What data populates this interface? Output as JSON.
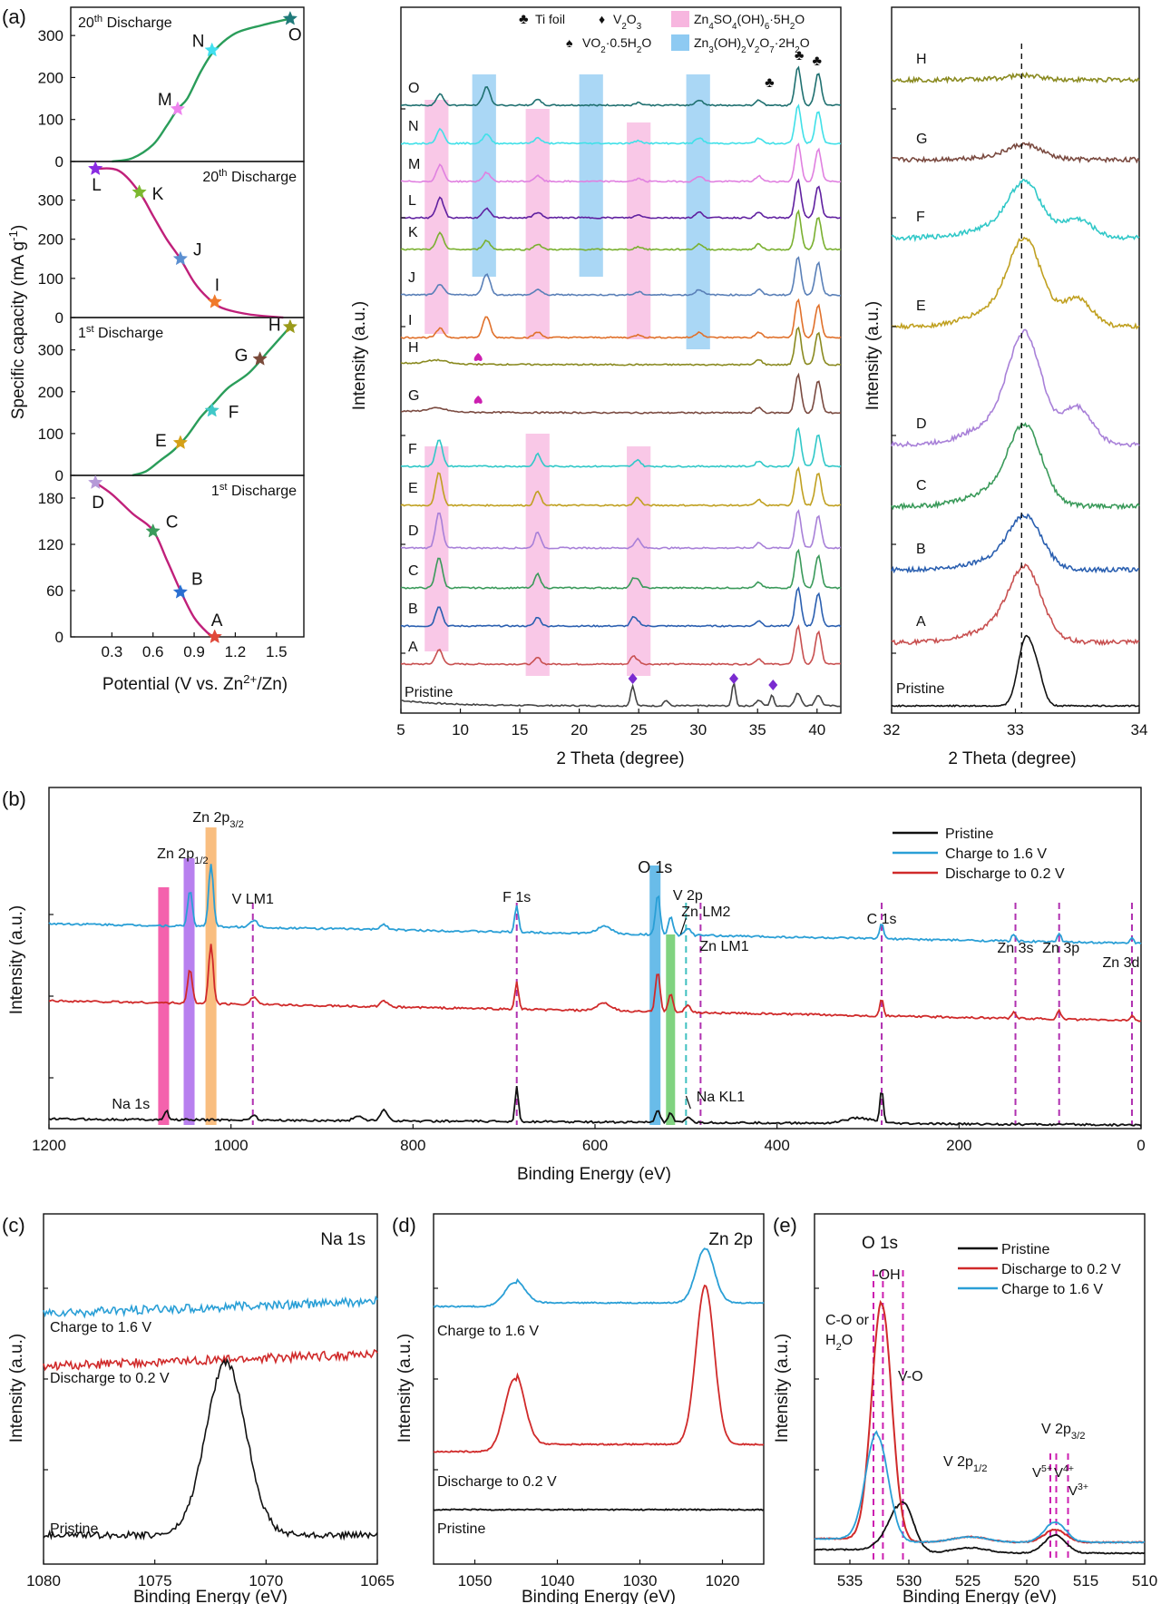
{
  "chart_data": [
    {
      "id": "a-capacity",
      "type": "line",
      "panel_label": "(a)",
      "xlabel_main": "Potential (V vs. Zn",
      "xlabel_sup": "2+",
      "xlabel_tail": "/Zn)",
      "ylabel_main": "Specific capacity (mA g",
      "ylabel_sup": "-1",
      "ylabel_tail": ")",
      "xlim": [
        0.0,
        1.7
      ],
      "xticks": [
        "0.3",
        "0.6",
        "0.9",
        "1.2",
        "1.5"
      ],
      "subplots": [
        {
          "label_main": "20",
          "label_sup": "th",
          "label_tail": " Discharge",
          "label_pos": "top-left",
          "color": "#2a9d5a",
          "ylim": [
            0,
            350
          ],
          "yticks": [
            "0",
            "100",
            "200",
            "300"
          ],
          "curve": [
            [
              0.3,
              0
            ],
            [
              0.45,
              8
            ],
            [
              0.6,
              40
            ],
            [
              0.7,
              85
            ],
            [
              0.78,
              125
            ],
            [
              0.85,
              150
            ],
            [
              0.95,
              215
            ],
            [
              1.05,
              265
            ],
            [
              1.2,
              305
            ],
            [
              1.4,
              325
            ],
            [
              1.6,
              340
            ]
          ],
          "points": [
            {
              "name": "M",
              "x": 0.78,
              "y": 125,
              "color": "#ee82ee"
            },
            {
              "name": "N",
              "x": 1.03,
              "y": 265,
              "color": "#40e0f0"
            },
            {
              "name": "O",
              "x": 1.6,
              "y": 340,
              "color": "#1f7a7a"
            }
          ]
        },
        {
          "label_main": "20",
          "label_sup": "th",
          "label_tail": " Discharge",
          "label_pos": "top-right",
          "color": "#c0207a",
          "ylim": [
            0,
            380
          ],
          "yticks": [
            "0",
            "100",
            "200",
            "300"
          ],
          "curve": [
            [
              0.18,
              380
            ],
            [
              0.35,
              375
            ],
            [
              0.5,
              320
            ],
            [
              0.6,
              260
            ],
            [
              0.7,
              200
            ],
            [
              0.8,
              150
            ],
            [
              0.9,
              90
            ],
            [
              1.0,
              50
            ],
            [
              1.1,
              25
            ],
            [
              1.3,
              8
            ],
            [
              1.55,
              0
            ]
          ],
          "points": [
            {
              "name": "L",
              "x": 0.18,
              "y": 380,
              "color": "#8a2be2"
            },
            {
              "name": "K",
              "x": 0.5,
              "y": 320,
              "color": "#7cb82f"
            },
            {
              "name": "J",
              "x": 0.8,
              "y": 150,
              "color": "#5b8fd1"
            },
            {
              "name": "I",
              "x": 1.05,
              "y": 40,
              "color": "#f07a2a"
            }
          ]
        },
        {
          "label_main": "1",
          "label_sup": "st",
          "label_tail": " Discharge",
          "label_pos": "top-left",
          "color": "#2a9d5a",
          "ylim": [
            0,
            360
          ],
          "yticks": [
            "0",
            "100",
            "200",
            "300"
          ],
          "curve": [
            [
              0.45,
              0
            ],
            [
              0.55,
              10
            ],
            [
              0.65,
              35
            ],
            [
              0.75,
              60
            ],
            [
              0.85,
              95
            ],
            [
              0.95,
              140
            ],
            [
              1.05,
              175
            ],
            [
              1.15,
              210
            ],
            [
              1.3,
              245
            ],
            [
              1.45,
              300
            ],
            [
              1.6,
              355
            ]
          ],
          "points": [
            {
              "name": "E",
              "x": 0.8,
              "y": 78,
              "color": "#d4a017"
            },
            {
              "name": "F",
              "x": 1.03,
              "y": 155,
              "color": "#40c8c8"
            },
            {
              "name": "G",
              "x": 1.38,
              "y": 278,
              "color": "#7a4a3a"
            },
            {
              "name": "H",
              "x": 1.6,
              "y": 355,
              "color": "#9a9a1a"
            }
          ]
        },
        {
          "label_main": "1",
          "label_sup": "st",
          "label_tail": " Discharge",
          "label_pos": "top-right",
          "color": "#c0207a",
          "ylim": [
            0,
            200
          ],
          "yticks": [
            "0",
            "60",
            "120",
            "180"
          ],
          "curve": [
            [
              0.18,
              200
            ],
            [
              0.3,
              185
            ],
            [
              0.45,
              160
            ],
            [
              0.6,
              138
            ],
            [
              0.7,
              100
            ],
            [
              0.8,
              60
            ],
            [
              0.9,
              25
            ],
            [
              1.0,
              5
            ],
            [
              1.05,
              0
            ]
          ],
          "points": [
            {
              "name": "D",
              "x": 0.18,
              "y": 200,
              "color": "#b59ad8"
            },
            {
              "name": "C",
              "x": 0.6,
              "y": 137,
              "color": "#3a9a5a"
            },
            {
              "name": "B",
              "x": 0.8,
              "y": 58,
              "color": "#2a6fd1"
            },
            {
              "name": "A",
              "x": 1.05,
              "y": 0,
              "color": "#e0483a"
            }
          ]
        }
      ]
    },
    {
      "id": "a-xrd",
      "type": "line",
      "xlabel": "2 Theta (degree)",
      "ylabel": "Intensity (a.u.)",
      "xlim": [
        5,
        42
      ],
      "xticks": [
        "5",
        "10",
        "15",
        "20",
        "25",
        "30",
        "35",
        "40"
      ],
      "legend": [
        {
          "symbol": "♣",
          "label": "Ti foil",
          "color": "#111111"
        },
        {
          "symbol": "♦",
          "label_main": "V",
          "label_sub": "2",
          "label_tail": "O",
          "label_sub2": "3",
          "color": "#7a2bd0"
        },
        {
          "symbol": "■",
          "label": "Zn4SO4(OH)6·5H2O",
          "color": "#f7b6df"
        },
        {
          "symbol": "♠",
          "label": "VO2·0.5H2O",
          "color": "#cc1fb0"
        },
        {
          "symbol": "■",
          "label": "Zn3(OH)2V2O7·2H2O",
          "color": "#8ecaf2"
        }
      ],
      "band_pink": [
        [
          7,
          9
        ],
        [
          15.5,
          17.5
        ],
        [
          24,
          26
        ]
      ],
      "band_blue": [
        [
          11,
          13
        ],
        [
          20,
          22
        ],
        [
          29,
          31
        ]
      ],
      "series": [
        {
          "name": "Pristine",
          "color": "#444444"
        },
        {
          "name": "A",
          "color": "#c85050"
        },
        {
          "name": "B",
          "color": "#2a5fb0"
        },
        {
          "name": "C",
          "color": "#3a9a5a"
        },
        {
          "name": "D",
          "color": "#a880d8"
        },
        {
          "name": "E",
          "color": "#c0a020"
        },
        {
          "name": "F",
          "color": "#30c8c8"
        },
        {
          "name": "G",
          "color": "#7a4a40"
        },
        {
          "name": "H",
          "color": "#8a8a20"
        },
        {
          "name": "I",
          "color": "#e0702a"
        },
        {
          "name": "J",
          "color": "#5a80b8"
        },
        {
          "name": "K",
          "color": "#7ab030"
        },
        {
          "name": "L",
          "color": "#6020a0"
        },
        {
          "name": "M",
          "color": "#e080e0"
        },
        {
          "name": "N",
          "color": "#40e0e8"
        },
        {
          "name": "O",
          "color": "#1f7070"
        }
      ],
      "markers_diamond": [
        24.5,
        33,
        36.3
      ],
      "markers_spade": [
        11.5,
        11.5
      ],
      "markers_club": [
        36,
        38.5,
        40
      ]
    },
    {
      "id": "a-zoom",
      "type": "line",
      "xlabel": "2 Theta (degree)",
      "ylabel": "Intensity (a.u.)",
      "xlim": [
        32,
        34
      ],
      "xticks": [
        "32",
        "33",
        "34"
      ],
      "ref_line": 33.05,
      "series": [
        "Pristine",
        "A",
        "B",
        "C",
        "D",
        "E",
        "F",
        "G",
        "H"
      ]
    },
    {
      "id": "b-survey",
      "type": "line",
      "panel_label": "(b)",
      "xlabel": "Binding Energy (eV)",
      "ylabel": "Intensity (a.u.)",
      "xlim": [
        1200,
        0
      ],
      "xticks": [
        "1200",
        "1000",
        "800",
        "600",
        "400",
        "200",
        "0"
      ],
      "legend": [
        {
          "label": "Pristine",
          "color": "#111111"
        },
        {
          "label": "Charge to 1.6 V",
          "color": "#2a9fd6"
        },
        {
          "label": "Discharge to 0.2 V",
          "color": "#d02a2a"
        }
      ],
      "bands": [
        {
          "x": [
            1080,
            1068
          ],
          "color": "#f0208a"
        },
        {
          "x": [
            1052,
            1040
          ],
          "color": "#9a4ae8"
        },
        {
          "x": [
            1028,
            1016
          ],
          "color": "#f6a24a"
        },
        {
          "x": [
            540,
            528
          ],
          "color": "#2aa0e0"
        },
        {
          "x": [
            522,
            512
          ],
          "color": "#4ac04a"
        }
      ],
      "peak_lines": [
        {
          "x": 976,
          "color": "#b030b0"
        },
        {
          "x": 686,
          "color": "#b030b0"
        },
        {
          "x": 500,
          "color": "#40c0c0"
        },
        {
          "x": 484,
          "color": "#b030b0"
        },
        {
          "x": 285,
          "color": "#b030b0"
        },
        {
          "x": 138,
          "color": "#b030b0"
        },
        {
          "x": 90,
          "color": "#b030b0"
        },
        {
          "x": 10,
          "color": "#b030b0"
        }
      ],
      "annotations": [
        {
          "text": "Na 1s",
          "x": 1110,
          "row": "pristine"
        },
        {
          "text": "Zn 2p",
          "sub": "1/2",
          "x": 1075,
          "row": "top1"
        },
        {
          "text": "Zn 2p",
          "sub": "3/2",
          "x": 1028,
          "row": "top0"
        },
        {
          "text": "V LM1",
          "x": 976,
          "row": "top2"
        },
        {
          "text": "F 1s",
          "x": 686,
          "row": "top2"
        },
        {
          "text": "O 1s",
          "x": 540,
          "row": "top1"
        },
        {
          "text": "V 2p",
          "x": 518,
          "row": "top2"
        },
        {
          "text": "Zn LM2",
          "x": 498,
          "row": "top3"
        },
        {
          "text": "Zn LM1",
          "x": 465,
          "row": "top4"
        },
        {
          "text": "Na KL1",
          "x": 470,
          "row": "pristine"
        },
        {
          "text": "C 1s",
          "x": 285,
          "row": "top4"
        },
        {
          "text": "Zn 3s",
          "x": 138,
          "row": "top5"
        },
        {
          "text": "Zn 3p",
          "x": 90,
          "row": "top5"
        },
        {
          "text": "Zn 3d",
          "x": 25,
          "row": "top6"
        }
      ]
    },
    {
      "id": "c-na1s",
      "type": "line",
      "panel_label": "(c)",
      "title": "Na 1s",
      "xlabel": "Binding Energy (eV)",
      "ylabel": "Intensity (a.u.)",
      "xlim": [
        1080,
        1065
      ],
      "xticks": [
        "1080",
        "1075",
        "1070",
        "1065"
      ],
      "series": [
        {
          "name": "Charge to 1.6 V",
          "color": "#2a9fd6"
        },
        {
          "name": "Discharge to 0.2 V",
          "color": "#d02a2a"
        },
        {
          "name": "Pristine",
          "color": "#111111"
        }
      ]
    },
    {
      "id": "d-zn2p",
      "type": "line",
      "panel_label": "(d)",
      "title": "Zn 2p",
      "xlabel": "Binding Energy (eV)",
      "ylabel": "Intensity (a.u.)",
      "xlim": [
        1055,
        1015
      ],
      "xticks": [
        "1050",
        "1040",
        "1030",
        "1020"
      ],
      "series": [
        {
          "name": "Charge to 1.6 V",
          "color": "#2a9fd6"
        },
        {
          "name": "Discharge to 0.2 V",
          "color": "#d02a2a"
        },
        {
          "name": "Pristine",
          "color": "#111111"
        }
      ]
    },
    {
      "id": "e-o1s",
      "type": "line",
      "panel_label": "(e)",
      "title": "O 1s",
      "xlabel": "Binding Energy (eV)",
      "ylabel": "Intensity (a.u.)",
      "xlim": [
        538,
        510
      ],
      "xticks": [
        "535",
        "530",
        "525",
        "520",
        "515",
        "510"
      ],
      "legend": [
        {
          "label": "Pristine",
          "color": "#111111"
        },
        {
          "label": "Discharge to 0.2 V",
          "color": "#d02a2a"
        },
        {
          "label": "Charge to 1.6 V",
          "color": "#2a9fd6"
        }
      ],
      "labels": {
        "oh": "-OH",
        "co1": "C-O or",
        "co2": "H",
        "co2_sub": "2",
        "co2_tail": "O",
        "vo": "V-O",
        "v2p12": "V 2p",
        "v2p12_sub": "1/2",
        "v2p32": "V 2p",
        "v2p32_sub": "3/2",
        "v5": "V",
        "v5_sup": "5+",
        "v4": "V",
        "v4_sup": "4+",
        "v3": "V",
        "v3_sup": "3+"
      },
      "ref_lines": [
        533.0,
        532.2,
        530.5,
        518.0,
        517.5,
        516.5
      ]
    }
  ]
}
